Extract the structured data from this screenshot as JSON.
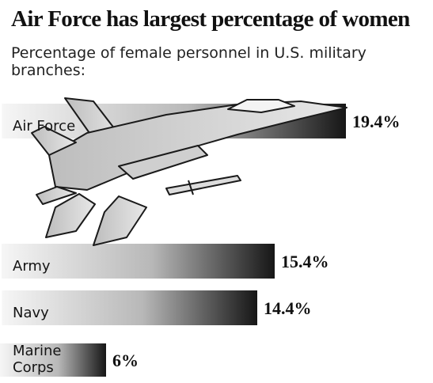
{
  "chart_data": {
    "type": "bar",
    "orientation": "horizontal",
    "title": "Air Force has largest percentage of women",
    "subtitle": "Percentage of female personnel in U.S. military branches:",
    "categories": [
      "Air Force",
      "Army",
      "Navy",
      "Marine Corps"
    ],
    "values": [
      19.4,
      15.4,
      14.4,
      6
    ],
    "value_labels": [
      "19.4%",
      "15.4%",
      "14.4%",
      "6%"
    ],
    "xlabel": "",
    "ylabel": "",
    "xlim": [
      0,
      20
    ],
    "grid": false,
    "legend": "none",
    "bar_style": "gradient light-to-dark",
    "colors": {
      "bar_dark": "#1a1a1a",
      "bar_light": "#f2f2f2",
      "text": "#111111"
    },
    "decoration": "fighter-jet-illustration"
  }
}
